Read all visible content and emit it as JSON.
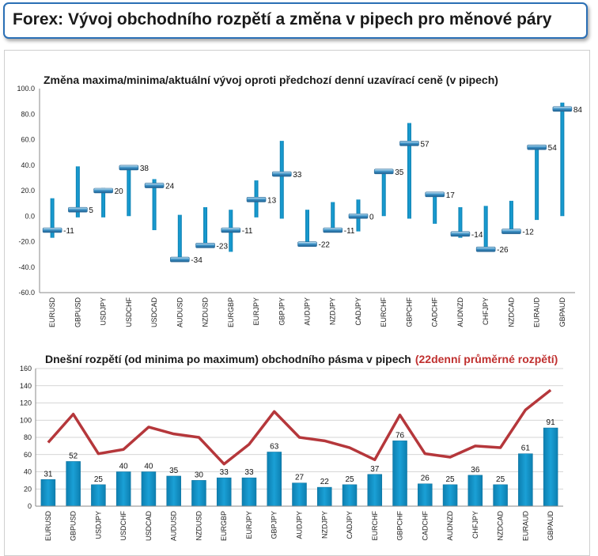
{
  "header": {
    "title": "Forex: Vývoj obchodního rozpětí a změna v pipech pro měnové páry"
  },
  "colors": {
    "bar": "#1aa0d6",
    "bar_dark": "#0d7fb0",
    "line": "#b5373b",
    "marker": "#3a8fc4",
    "accent_red": "#c0302f"
  },
  "chart_data": [
    {
      "type": "range",
      "title": "Změna maxima/minima/aktuální vývoj oproti předchozí denní uzavírací ceně (v pipech)",
      "ylim": [
        -60,
        100
      ],
      "yticks": [
        "100.0",
        "80.0",
        "60.0",
        "40.0",
        "20.0",
        "0.0",
        "-20.0",
        "-40.0",
        "-60.0"
      ],
      "ytick_values": [
        100,
        80,
        60,
        40,
        20,
        0,
        -20,
        -40,
        -60
      ],
      "categories": [
        "EURUSD",
        "GBPUSD",
        "USDJPY",
        "USDCHF",
        "USDCAD",
        "AUDUSD",
        "NZDUSD",
        "EURGBP",
        "EURJPY",
        "GBPJPY",
        "AUDJPY",
        "NZDJPY",
        "CADJPY",
        "EURCHF",
        "GBPCHF",
        "CADCHF",
        "AUDNZD",
        "CHFJPY",
        "NZDCAD",
        "EURAUD",
        "GBPAUD"
      ],
      "high": [
        14,
        39,
        22,
        39,
        29,
        1,
        7,
        5,
        28,
        59,
        5,
        11,
        13,
        37,
        73,
        19,
        7,
        8,
        12,
        56,
        89
      ],
      "low": [
        -17,
        -1,
        -1,
        0,
        -11,
        -35,
        -24,
        -28,
        -1,
        -2,
        -22,
        -11,
        -12,
        0,
        -2,
        -6,
        -17,
        -28,
        -13,
        -3,
        0
      ],
      "current": [
        -11,
        5,
        20,
        38,
        24,
        -34,
        -23,
        -11,
        13,
        33,
        -22,
        -11,
        0,
        35,
        57,
        17,
        -14,
        -26,
        -12,
        54,
        84
      ],
      "labels": [
        "-11",
        "5",
        "20",
        "38",
        "24",
        "-34",
        "-23",
        "-11",
        "13",
        "33",
        "-22",
        "-11",
        "0",
        "35",
        "57",
        "17",
        "-14",
        "-26",
        "-12",
        "54",
        "84"
      ]
    },
    {
      "type": "bar+line",
      "title": "Dnešní rozpětí (od minima po maximum) obchodního pásma v pipech",
      "title_note": "(22denní průměrné rozpětí)",
      "ylim": [
        0,
        160
      ],
      "yticks": [
        "160",
        "140",
        "120",
        "100",
        "80",
        "60",
        "40",
        "20",
        "0"
      ],
      "ytick_values": [
        160,
        140,
        120,
        100,
        80,
        60,
        40,
        20,
        0
      ],
      "categories": [
        "EURUSD",
        "GBPUSD",
        "USDJPY",
        "USDCHF",
        "USDCAD",
        "AUDUSD",
        "NZDUSD",
        "EURGBP",
        "EURJPY",
        "GBPJPY",
        "AUDJPY",
        "NZDJPY",
        "CADJPY",
        "EURCHF",
        "GBPCHF",
        "CADCHF",
        "AUDNZD",
        "CHFJPY",
        "NZDCAD",
        "EURAUD",
        "GBPAUD"
      ],
      "values": [
        31,
        52,
        25,
        40,
        40,
        35,
        30,
        33,
        33,
        63,
        27,
        22,
        25,
        37,
        76,
        26,
        25,
        36,
        25,
        61,
        91
      ],
      "labels": [
        "31",
        "52",
        "25",
        "40",
        "40",
        "35",
        "30",
        "33",
        "33",
        "63",
        "27",
        "22",
        "25",
        "37",
        "76",
        "26",
        "25",
        "36",
        "25",
        "61",
        "91"
      ],
      "avg": [
        74,
        107,
        61,
        66,
        92,
        84,
        80,
        49,
        72,
        110,
        80,
        76,
        68,
        54,
        106,
        61,
        57,
        70,
        68,
        112,
        135
      ]
    }
  ]
}
